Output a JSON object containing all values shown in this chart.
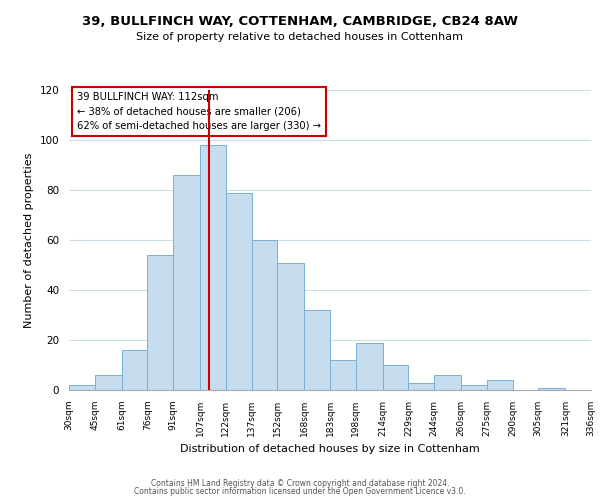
{
  "title1": "39, BULLFINCH WAY, COTTENHAM, CAMBRIDGE, CB24 8AW",
  "title2": "Size of property relative to detached houses in Cottenham",
  "xlabel": "Distribution of detached houses by size in Cottenham",
  "ylabel": "Number of detached properties",
  "bin_labels": [
    "30sqm",
    "45sqm",
    "61sqm",
    "76sqm",
    "91sqm",
    "107sqm",
    "122sqm",
    "137sqm",
    "152sqm",
    "168sqm",
    "183sqm",
    "198sqm",
    "214sqm",
    "229sqm",
    "244sqm",
    "260sqm",
    "275sqm",
    "290sqm",
    "305sqm",
    "321sqm",
    "336sqm"
  ],
  "bar_heights": [
    2,
    6,
    16,
    54,
    86,
    98,
    79,
    60,
    51,
    32,
    12,
    19,
    10,
    3,
    6,
    2,
    4,
    0,
    1,
    0
  ],
  "bar_color": "#c5ddef",
  "bar_edge_color": "#7ab0d4",
  "vline_x": 112,
  "vline_color": "#cc0000",
  "annotation_line1": "39 BULLFINCH WAY: 112sqm",
  "annotation_line2": "← 38% of detached houses are smaller (206)",
  "annotation_line3": "62% of semi-detached houses are larger (330) →",
  "annotation_box_edge": "#cc0000",
  "ylim": [
    0,
    120
  ],
  "yticks": [
    0,
    20,
    40,
    60,
    80,
    100,
    120
  ],
  "footer1": "Contains HM Land Registry data © Crown copyright and database right 2024.",
  "footer2": "Contains public sector information licensed under the Open Government Licence v3.0.",
  "bin_edges": [
    30,
    45,
    61,
    76,
    91,
    107,
    122,
    137,
    152,
    168,
    183,
    198,
    214,
    229,
    244,
    260,
    275,
    290,
    305,
    321,
    336
  ]
}
